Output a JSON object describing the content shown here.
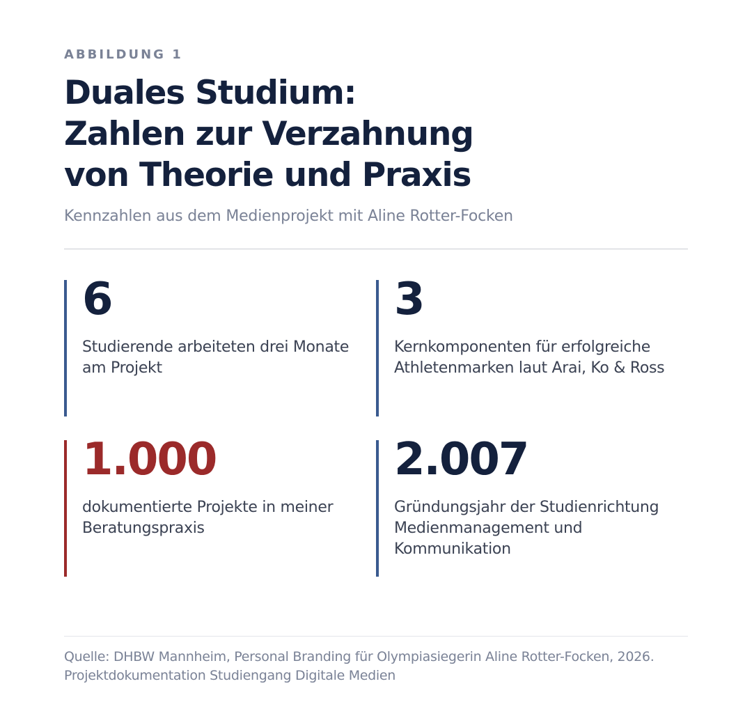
{
  "figure": {
    "eyebrow": "ABBILDUNG 1",
    "title_lines": [
      "Duales Studium:",
      "Zahlen zur Verzahnung",
      "von Theorie und Praxis"
    ],
    "subtitle": "Kennzahlen aus dem Medienprojekt mit Aline Rotter-Focken"
  },
  "stats": [
    {
      "value": "6",
      "description": "Studierende arbeiteten drei Monate am Projekt",
      "accent": false
    },
    {
      "value": "3",
      "description": "Kernkomponenten für erfolgreiche Athletenmarken laut Arai, Ko & Ross",
      "accent": false
    },
    {
      "value": "1.000",
      "description": "dokumentierte Projekte in meiner Beratungspraxis",
      "accent": true
    },
    {
      "value": "2.007",
      "description": "Gründungsjahr der Studienrichtung Medienmanagement und Kommunikation",
      "accent": false
    }
  ],
  "source": "Quelle: DHBW Mannheim, Personal Branding für Olympiasiegerin Aline Rotter-Focken, 2026. Projektdokumentation Studiengang Digitale Medien",
  "colors": {
    "navy": "#14213d",
    "accent_red": "#9b2a2a",
    "bar_blue": "#3a5a8f",
    "muted_gray": "#7a8296"
  }
}
